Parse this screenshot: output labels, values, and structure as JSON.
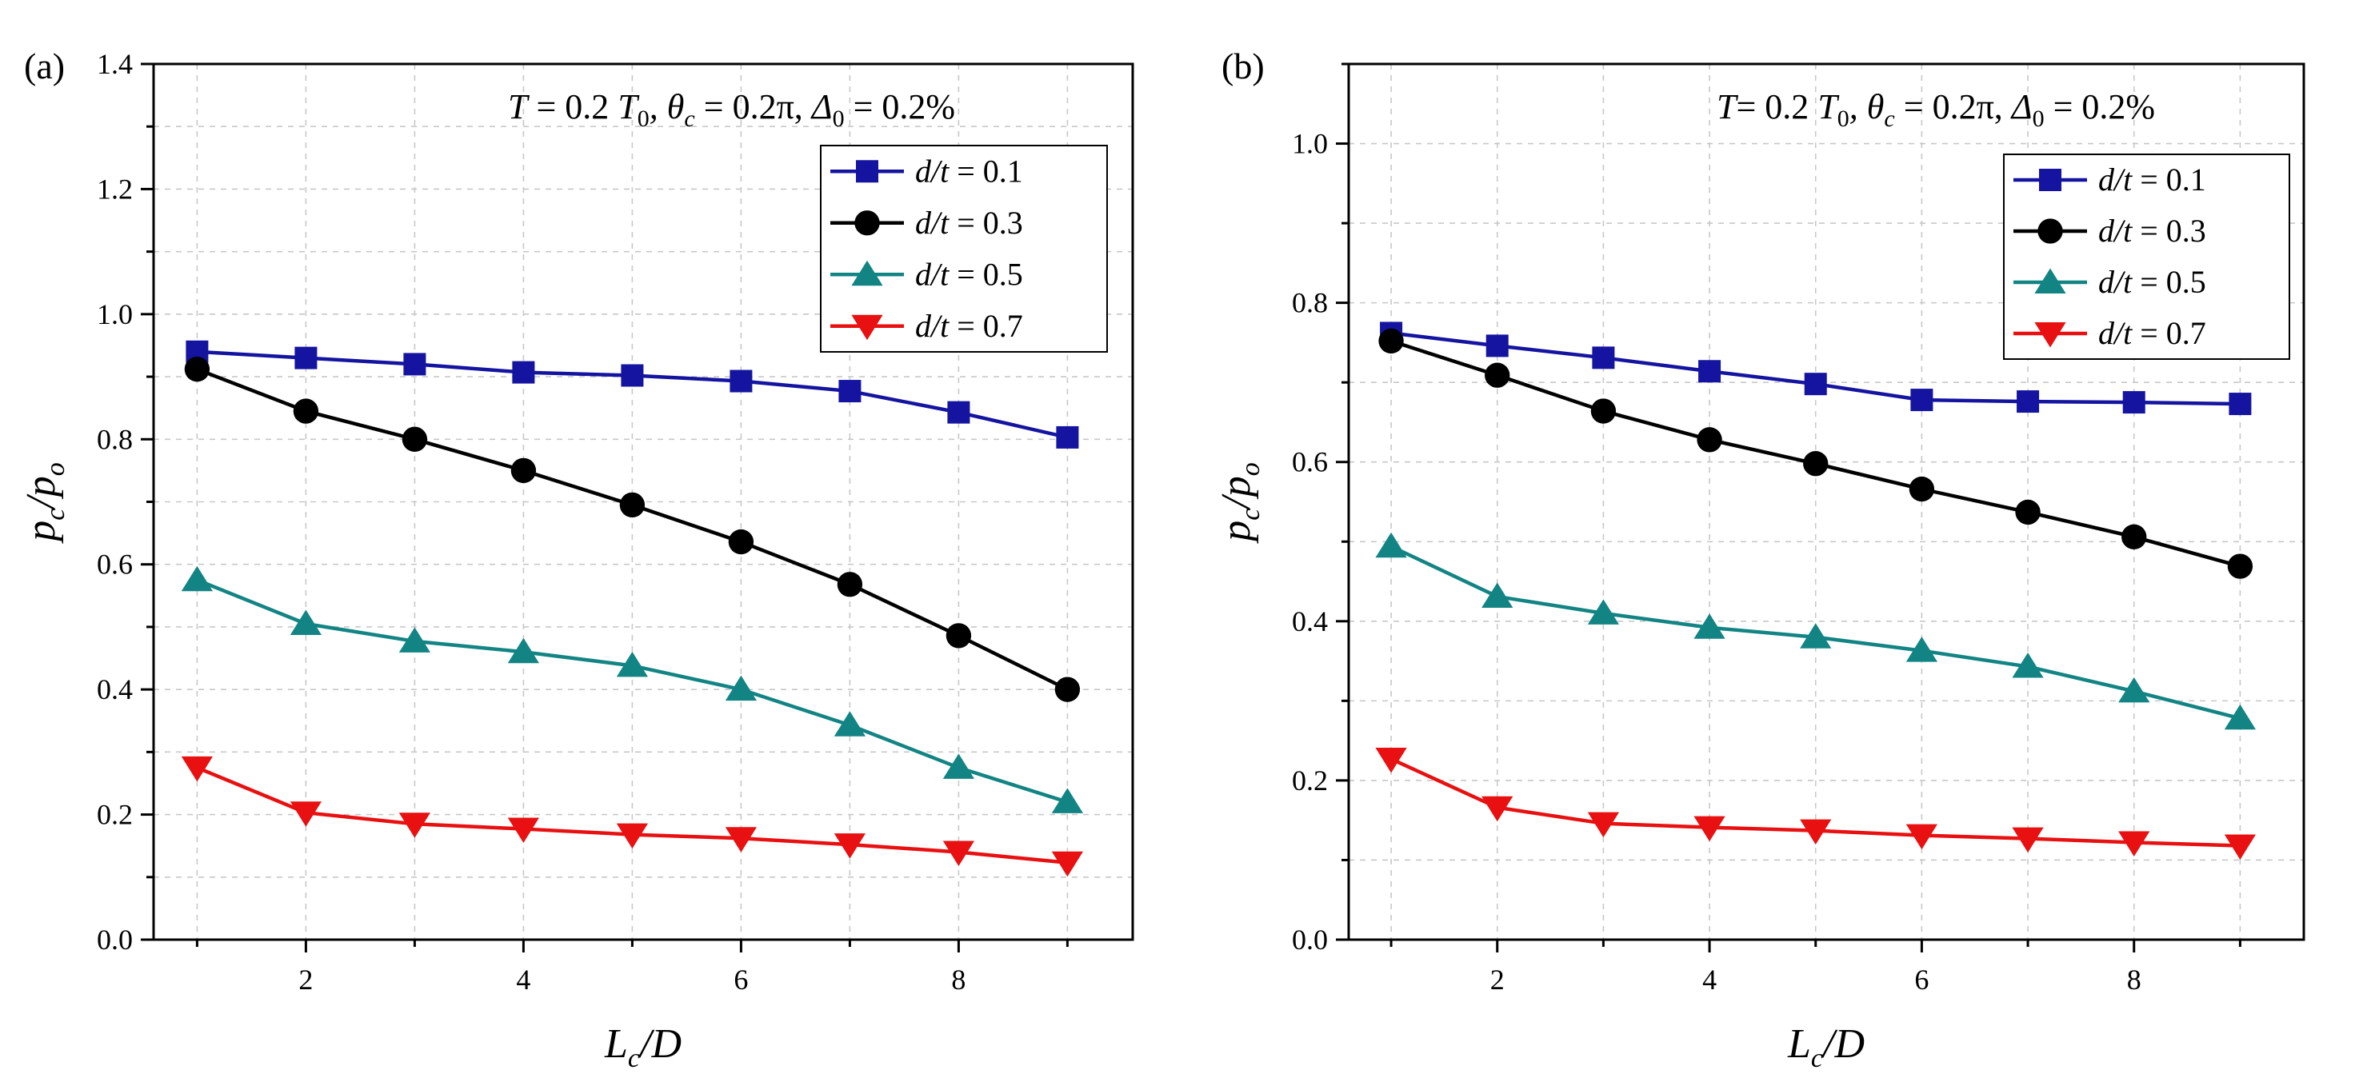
{
  "chart_data": [
    {
      "panel_label": "(a)",
      "type": "line",
      "annotation": {
        "T": "T",
        "eq1": " = 0.2 ",
        "T0": "T",
        "T0_sub": "0",
        "theta": ", θ",
        "theta_sub": "c",
        "eq2": " = 0.2π, ",
        "delta": "Δ",
        "delta_sub": "0",
        "eq3": " = 0.2%"
      },
      "xlabel": {
        "main": "L",
        "sub": "c",
        "rest": "/D"
      },
      "ylabel": {
        "p": "p",
        "p_sub": "c",
        "slash": "/p",
        "o_sub": "o"
      },
      "xlim": [
        0.6,
        9.6
      ],
      "ylim": [
        0,
        1.4
      ],
      "xticks": [
        2,
        4,
        6,
        8
      ],
      "yticks": [
        0.0,
        0.2,
        0.4,
        0.6,
        0.8,
        1.0,
        1.2,
        1.4
      ],
      "ytick_labels": [
        "0.0",
        "0.2",
        "0.4",
        "0.6",
        "0.8",
        "1.0",
        "1.2",
        "1.4"
      ],
      "x": [
        1,
        2,
        3,
        4,
        5,
        6,
        7,
        8,
        9
      ],
      "grid": true,
      "legend_position": "top-right",
      "series": [
        {
          "name": "d/t = 0.1",
          "name_var": "d/t",
          "name_val": " = 0.1",
          "color": "#1414a0",
          "marker": "square",
          "values": [
            0.94,
            0.93,
            0.92,
            0.907,
            0.902,
            0.893,
            0.877,
            0.843,
            0.803
          ]
        },
        {
          "name": "d/t = 0.3",
          "name_var": "d/t",
          "name_val": " = 0.3",
          "color": "#000000",
          "marker": "circle",
          "values": [
            0.912,
            0.845,
            0.8,
            0.75,
            0.695,
            0.636,
            0.568,
            0.486,
            0.4
          ]
        },
        {
          "name": "d/t = 0.5",
          "name_var": "d/t",
          "name_val": " = 0.5",
          "color": "#138484",
          "marker": "triangle-up",
          "values": [
            0.575,
            0.505,
            0.477,
            0.46,
            0.438,
            0.4,
            0.343,
            0.275,
            0.22
          ]
        },
        {
          "name": "d/t = 0.7",
          "name_var": "d/t",
          "name_val": " = 0.7",
          "color": "#e81010",
          "marker": "triangle-down",
          "values": [
            0.275,
            0.203,
            0.185,
            0.177,
            0.168,
            0.162,
            0.152,
            0.14,
            0.123
          ]
        }
      ]
    },
    {
      "panel_label": "(b)",
      "type": "line",
      "annotation": {
        "T": "T",
        "eq1": "= 0.2 ",
        "T0": "T",
        "T0_sub": "0",
        "theta": ", θ",
        "theta_sub": "c",
        "eq2": " = 0.2π, ",
        "delta": "Δ",
        "delta_sub": "0",
        "eq3": " = 0.2%"
      },
      "xlabel": {
        "main": "L",
        "sub": "c",
        "rest": "/D"
      },
      "ylabel": {
        "p": "p",
        "p_sub": "c",
        "slash": "/p",
        "o_sub": "o"
      },
      "xlim": [
        0.6,
        9.6
      ],
      "ylim": [
        0,
        1.1
      ],
      "xticks": [
        2,
        4,
        6,
        8
      ],
      "yticks": [
        0.0,
        0.2,
        0.4,
        0.6,
        0.8,
        1.0
      ],
      "ytick_labels": [
        "0.0",
        "0.2",
        "0.4",
        "0.6",
        "0.8",
        "1.0"
      ],
      "x": [
        1,
        2,
        3,
        4,
        5,
        6,
        7,
        8,
        9
      ],
      "grid": true,
      "legend_position": "top-right",
      "series": [
        {
          "name": "d/t = 0.1",
          "name_var": "d/t",
          "name_val": " = 0.1",
          "color": "#1414a0",
          "marker": "square",
          "values": [
            0.762,
            0.746,
            0.731,
            0.714,
            0.698,
            0.678,
            0.676,
            0.675,
            0.673
          ]
        },
        {
          "name": "d/t = 0.3",
          "name_var": "d/t",
          "name_val": " = 0.3",
          "color": "#000000",
          "marker": "circle",
          "values": [
            0.752,
            0.709,
            0.664,
            0.628,
            0.598,
            0.566,
            0.537,
            0.506,
            0.469
          ]
        },
        {
          "name": "d/t = 0.5",
          "name_var": "d/t",
          "name_val": " = 0.5",
          "color": "#138484",
          "marker": "triangle-up",
          "values": [
            0.494,
            0.431,
            0.41,
            0.392,
            0.38,
            0.363,
            0.343,
            0.312,
            0.278
          ]
        },
        {
          "name": "d/t = 0.7",
          "name_var": "d/t",
          "name_val": " = 0.7",
          "color": "#e81010",
          "marker": "triangle-down",
          "values": [
            0.227,
            0.166,
            0.146,
            0.141,
            0.137,
            0.131,
            0.127,
            0.122,
            0.118
          ]
        }
      ]
    }
  ]
}
